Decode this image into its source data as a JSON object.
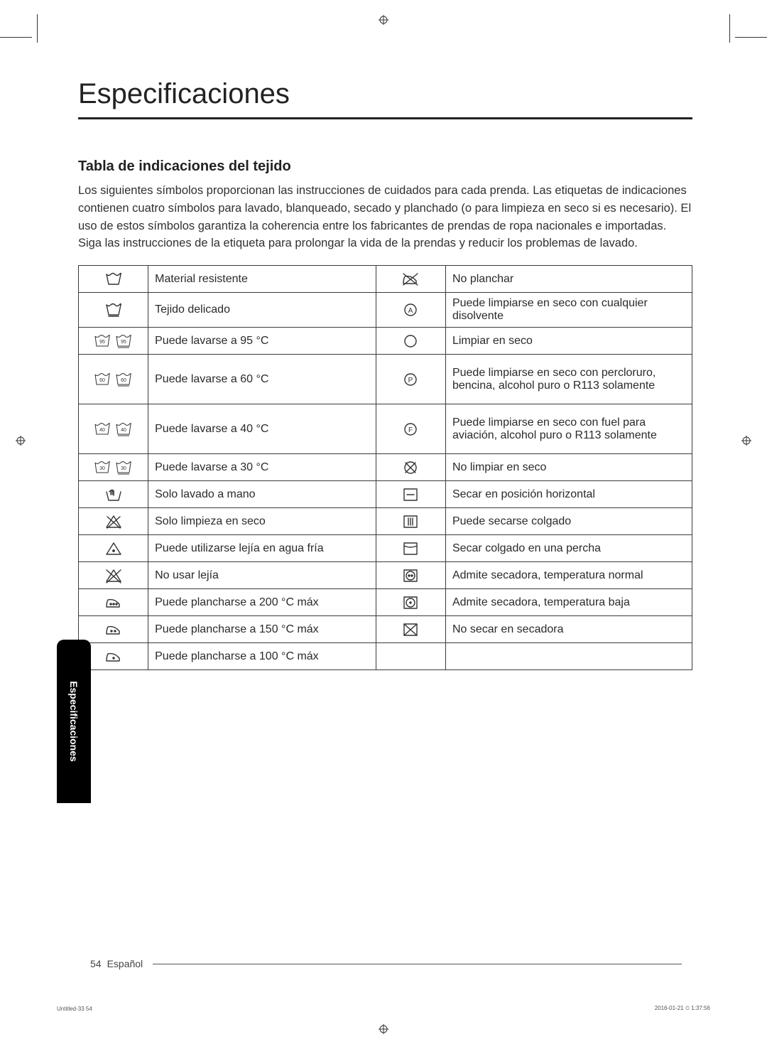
{
  "page_title": "Especificaciones",
  "section_title": "Tabla de indicaciones del tejido",
  "intro": "Los siguientes símbolos proporcionan las instrucciones de cuidados para cada prenda. Las etiquetas de indicaciones contienen cuatro símbolos para lavado, blanqueado, secado y planchado (o para limpieza en seco si es necesario). El uso de estos símbolos garantiza la coherencia entre los fabricantes de prendas de ropa nacionales e importadas. Siga las instrucciones de la etiqueta para prolongar la vida de la prendas y reducir los problemas de lavado.",
  "rows_left": [
    {
      "icon": "tub",
      "label": "Material resistente"
    },
    {
      "icon": "tub-line",
      "label": "Tejido delicado"
    },
    {
      "icon": "tub-95",
      "label": "Puede lavarse a 95 °C"
    },
    {
      "icon": "tub-60",
      "label": "Puede lavarse a 60 °C"
    },
    {
      "icon": "tub-40",
      "label": "Puede lavarse a 40 °C"
    },
    {
      "icon": "tub-30",
      "label": "Puede lavarse a 30 °C"
    },
    {
      "icon": "hand",
      "label": "Solo lavado a mano"
    },
    {
      "icon": "triangle-x",
      "label": "Solo limpieza en seco"
    },
    {
      "icon": "triangle-dot",
      "label": "Puede utilizarse lejía en agua fría"
    },
    {
      "icon": "triangle-x2",
      "label": "No usar lejía"
    },
    {
      "icon": "iron-3",
      "label": "Puede plancharse a 200 °C máx"
    },
    {
      "icon": "iron-2",
      "label": "Puede plancharse a 150 °C máx"
    },
    {
      "icon": "iron-1",
      "label": "Puede plancharse a 100 °C máx"
    }
  ],
  "rows_right": [
    {
      "icon": "iron-x",
      "label": "No planchar"
    },
    {
      "icon": "circle-a",
      "label": "Puede limpiarse en seco con cualquier disolvente"
    },
    {
      "icon": "circle",
      "label": "Limpiar en seco"
    },
    {
      "icon": "circle-p",
      "label": "Puede limpiarse en seco con percloruro, bencina, alcohol puro o R113 solamente"
    },
    {
      "icon": "circle-f",
      "label": "Puede limpiarse en seco con fuel para aviación, alcohol puro o R113 solamente"
    },
    {
      "icon": "circle-x",
      "label": "No limpiar en seco"
    },
    {
      "icon": "sq-dash",
      "label": "Secar en posición horizontal"
    },
    {
      "icon": "sq-lines",
      "label": "Puede secarse colgado"
    },
    {
      "icon": "sq-curve",
      "label": "Secar colgado en una percha"
    },
    {
      "icon": "sq-circ-2",
      "label": "Admite secadora, temperatura normal"
    },
    {
      "icon": "sq-circ-1",
      "label": "Admite secadora, temperatura baja"
    },
    {
      "icon": "sq-x",
      "label": "No secar en secadora"
    },
    {
      "icon": "",
      "label": ""
    }
  ],
  "side_tab": "Especificaciones",
  "page_number": "54",
  "language": "Español",
  "footer_left": "Untitled-33   54",
  "footer_right": "2016-01-21   ⏲ 1:37:56",
  "colors": {
    "text": "#2a2a2a",
    "border": "#3a3a3a",
    "tab_bg": "#000000"
  }
}
